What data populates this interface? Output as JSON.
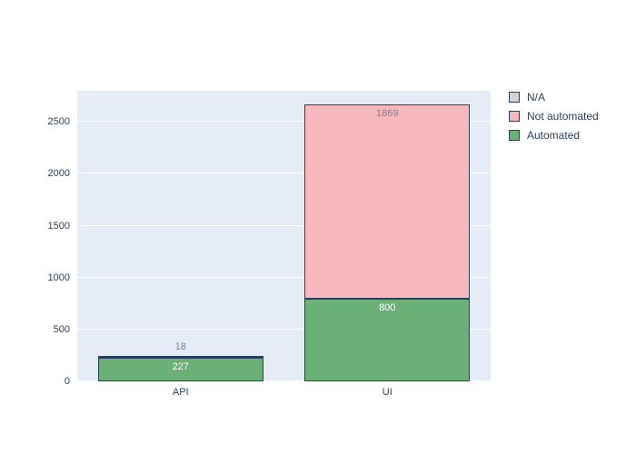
{
  "figure": {
    "background": "#ffffff",
    "plot_background": "#e5ecf6",
    "text_color": "#2a3f5f"
  },
  "chart_data": {
    "type": "bar",
    "stacked": true,
    "title": "",
    "xlabel": "",
    "ylabel": "",
    "categories": [
      "API",
      "UI"
    ],
    "series": [
      {
        "name": "Automated",
        "color": "#6bb077",
        "label_color": "#ffffff",
        "values": [
          227,
          800
        ]
      },
      {
        "name": "Not automated",
        "color": "#f7b9be",
        "label_color": "#76849a",
        "values": [
          18,
          1869
        ]
      },
      {
        "name": "N/A",
        "color": "#d3d3d3",
        "label_color": "#76849a",
        "values": [
          0,
          0
        ]
      }
    ],
    "bar_border_color": "#2a3f5f",
    "yticks": [
      0,
      500,
      1000,
      1500,
      2000,
      2500
    ],
    "ylim": [
      0,
      2800
    ],
    "grid": true,
    "legend_position": "top-right",
    "legend_order": [
      "N/A",
      "Not automated",
      "Automated"
    ]
  }
}
